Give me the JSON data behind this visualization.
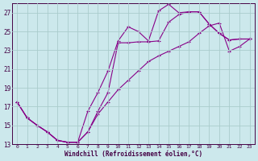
{
  "xlabel": "Windchill (Refroidissement éolien,°C)",
  "bg_color": "#cce8ec",
  "grid_color": "#aacccc",
  "line_color": "#880088",
  "xmin": -0.5,
  "xmax": 23.5,
  "ymin": 13,
  "ymax": 28,
  "yticks": [
    13,
    15,
    17,
    19,
    21,
    23,
    25,
    27
  ],
  "xticks": [
    0,
    1,
    2,
    3,
    4,
    5,
    6,
    7,
    8,
    9,
    10,
    11,
    12,
    13,
    14,
    15,
    16,
    17,
    18,
    19,
    20,
    21,
    22,
    23
  ],
  "line1_y": [
    17.5,
    15.8,
    15.0,
    14.3,
    13.4,
    13.2,
    13.2,
    16.5,
    18.5,
    20.8,
    24.0,
    25.5,
    25.0,
    24.0,
    27.2,
    27.9,
    27.0,
    27.1,
    27.1,
    25.8,
    24.8,
    24.1,
    24.2,
    24.2
  ],
  "line2_y": [
    17.5,
    15.8,
    15.0,
    14.3,
    13.4,
    13.2,
    13.2,
    14.3,
    16.5,
    18.5,
    23.8,
    23.8,
    23.9,
    23.9,
    24.0,
    26.0,
    26.8,
    27.1,
    27.1,
    25.8,
    24.8,
    24.1,
    24.2,
    24.2
  ],
  "line3_y": [
    17.5,
    15.8,
    15.0,
    14.3,
    13.4,
    13.2,
    13.2,
    14.3,
    16.2,
    17.5,
    18.8,
    19.8,
    20.8,
    21.8,
    22.4,
    22.9,
    23.4,
    23.9,
    24.8,
    25.6,
    25.9,
    22.9,
    23.4,
    24.2
  ]
}
